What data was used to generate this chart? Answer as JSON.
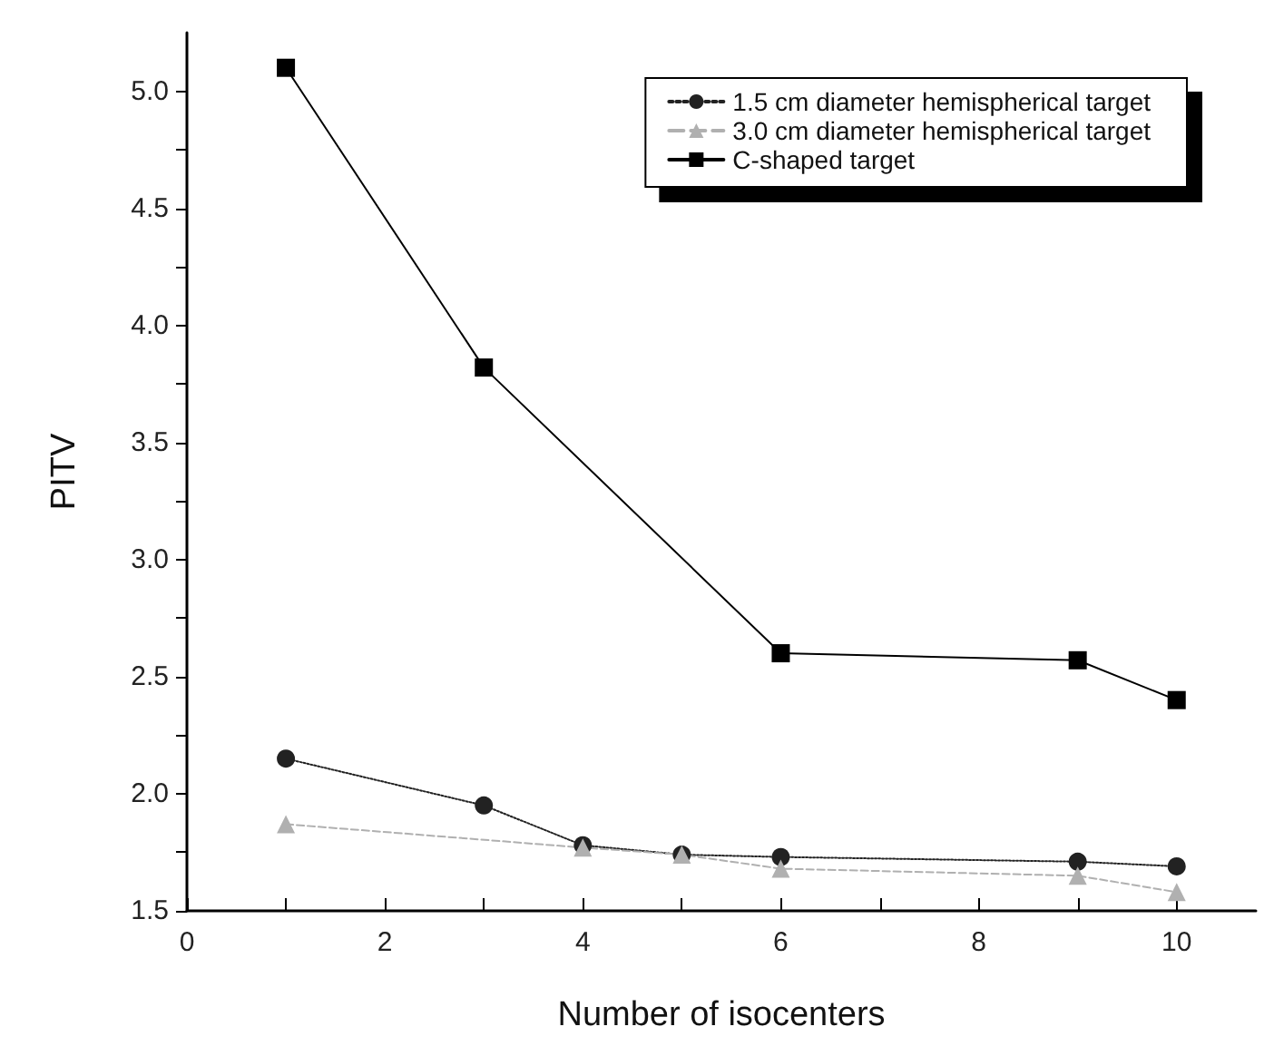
{
  "chart_data": {
    "type": "line",
    "xlabel": "Number of isocenters",
    "ylabel": "PITV",
    "xlim": [
      0,
      10.8
    ],
    "xticks": [
      0,
      2,
      4,
      6,
      8,
      10
    ],
    "ylim": [
      1.5,
      5.25
    ],
    "yticks": [
      1.5,
      {
        "value": 2,
        "label": "2.0"
      },
      2.5,
      {
        "value": 3,
        "label": "3.0"
      },
      3.5,
      {
        "value": 4,
        "label": "4.0"
      },
      4.5,
      {
        "value": 5,
        "label": "5.0"
      }
    ],
    "grid": false,
    "legend": "top right",
    "series": [
      {
        "name": "1.5 cm diameter hemispherical target",
        "color": "#222222",
        "marker": "circle",
        "line_style": "dotted",
        "x": [
          1,
          3,
          4,
          5,
          6,
          9,
          10
        ],
        "values": [
          2.15,
          1.95,
          1.78,
          1.74,
          1.73,
          1.71,
          1.69
        ]
      },
      {
        "name": "3.0 cm diameter hemispherical target",
        "color": "#b0b0b0",
        "marker": "triangle",
        "line_style": "dashed",
        "x": [
          1,
          4,
          5,
          6,
          9,
          10
        ],
        "values": [
          1.87,
          1.77,
          1.74,
          1.68,
          1.65,
          1.58
        ]
      },
      {
        "name": "C-shaped target",
        "color": "#000000",
        "marker": "square",
        "line_style": "solid",
        "x": [
          1,
          3,
          6,
          9,
          10
        ],
        "values": [
          5.1,
          3.82,
          2.6,
          2.57,
          2.4
        ]
      }
    ]
  }
}
